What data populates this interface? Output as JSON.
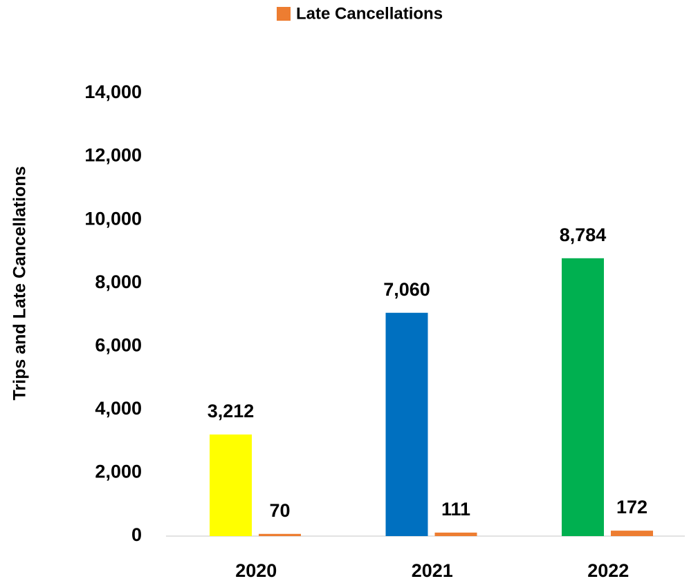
{
  "chart_data": {
    "type": "bar",
    "y_label": "Trips and Late Cancellations",
    "categories": [
      "2020",
      "2021",
      "2022"
    ],
    "series": [
      {
        "colors": [
          "#ffff00",
          "#0070c0",
          "#00b050"
        ],
        "values": [
          3212,
          7060,
          8784
        ],
        "value_labels": [
          "3,212",
          "7,060",
          "8,784"
        ]
      },
      {
        "name": "Late Cancellations",
        "color": "#ed7d31",
        "values": [
          70,
          111,
          172
        ],
        "value_labels": [
          "70",
          "111",
          "172"
        ]
      }
    ],
    "ylim": [
      0,
      14000
    ],
    "yticks": [
      0,
      {
        "value": 2000,
        "label": "2,000"
      },
      {
        "value": 4000,
        "label": "4,000"
      },
      {
        "value": 6000,
        "label": "6,000"
      },
      {
        "value": 8000,
        "label": "8,000"
      },
      {
        "value": 10000,
        "label": "10,000"
      },
      {
        "value": 12000,
        "label": "12,000"
      },
      {
        "value": 14000,
        "label": "14,000"
      }
    ],
    "legend": "top",
    "grid": false
  }
}
